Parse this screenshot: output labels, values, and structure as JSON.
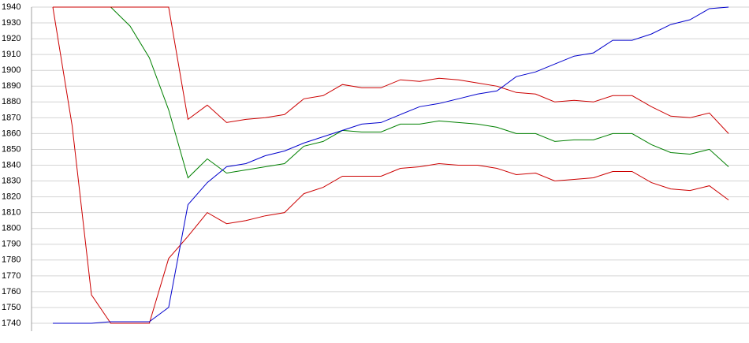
{
  "chart_data": {
    "type": "line",
    "categories": [
      null,
      null,
      null,
      null,
      null,
      null,
      null,
      null,
      null,
      null,
      null,
      null,
      null,
      null,
      null,
      null,
      null,
      null,
      null,
      null,
      null,
      null,
      null,
      null,
      null,
      null,
      null,
      null,
      null,
      null,
      null,
      null,
      null,
      null,
      null,
      null
    ],
    "ylim": [
      1740,
      1940
    ],
    "yticks": [
      1740,
      1750,
      1760,
      1770,
      1780,
      1790,
      1800,
      1810,
      1820,
      1830,
      1840,
      1850,
      1860,
      1870,
      1880,
      1890,
      1900,
      1910,
      1920,
      1930,
      1940
    ],
    "grid": true,
    "series": [
      {
        "color": "#008000",
        "values": [
          1940,
          1940,
          1940,
          1940,
          1928,
          1908,
          1875,
          1832,
          1844,
          1835,
          1837,
          1839,
          1841,
          1852,
          1855,
          1862,
          1861,
          1861,
          1866,
          1866,
          1868,
          1867,
          1866,
          1864,
          1860,
          1860,
          1855,
          1856,
          1856,
          1860,
          1860,
          1853,
          1848,
          1847,
          1850,
          1839
        ]
      },
      {
        "color": "#cc0000",
        "values": [
          1940,
          1940,
          1940,
          1940,
          1940,
          1940,
          1940,
          1869,
          1878,
          1867,
          1869,
          1870,
          1872,
          1882,
          1884,
          1891,
          1889,
          1889,
          1894,
          1893,
          1895,
          1894,
          1892,
          1890,
          1886,
          1885,
          1880,
          1881,
          1880,
          1884,
          1884,
          1877,
          1871,
          1870,
          1873,
          1860
        ]
      },
      {
        "color": "#cc0000",
        "values": [
          1940,
          1865,
          1758,
          1740,
          1740,
          1740,
          1781,
          1795,
          1810,
          1803,
          1805,
          1808,
          1810,
          1822,
          1826,
          1833,
          1833,
          1833,
          1838,
          1839,
          1841,
          1840,
          1840,
          1838,
          1834,
          1835,
          1830,
          1831,
          1832,
          1836,
          1836,
          1829,
          1825,
          1824,
          1827,
          1818
        ]
      },
      {
        "color": "#0000cc",
        "values": [
          1740,
          1740,
          1740,
          1741,
          1741,
          1741,
          1750,
          1815,
          1829,
          1839,
          1841,
          1846,
          1849,
          1854,
          1858,
          1862,
          1866,
          1867,
          1872,
          1877,
          1879,
          1882,
          1885,
          1887,
          1896,
          1899,
          1904,
          1909,
          1911,
          1919,
          1919,
          1923,
          1929,
          1932,
          1939,
          1940
        ]
      }
    ]
  }
}
